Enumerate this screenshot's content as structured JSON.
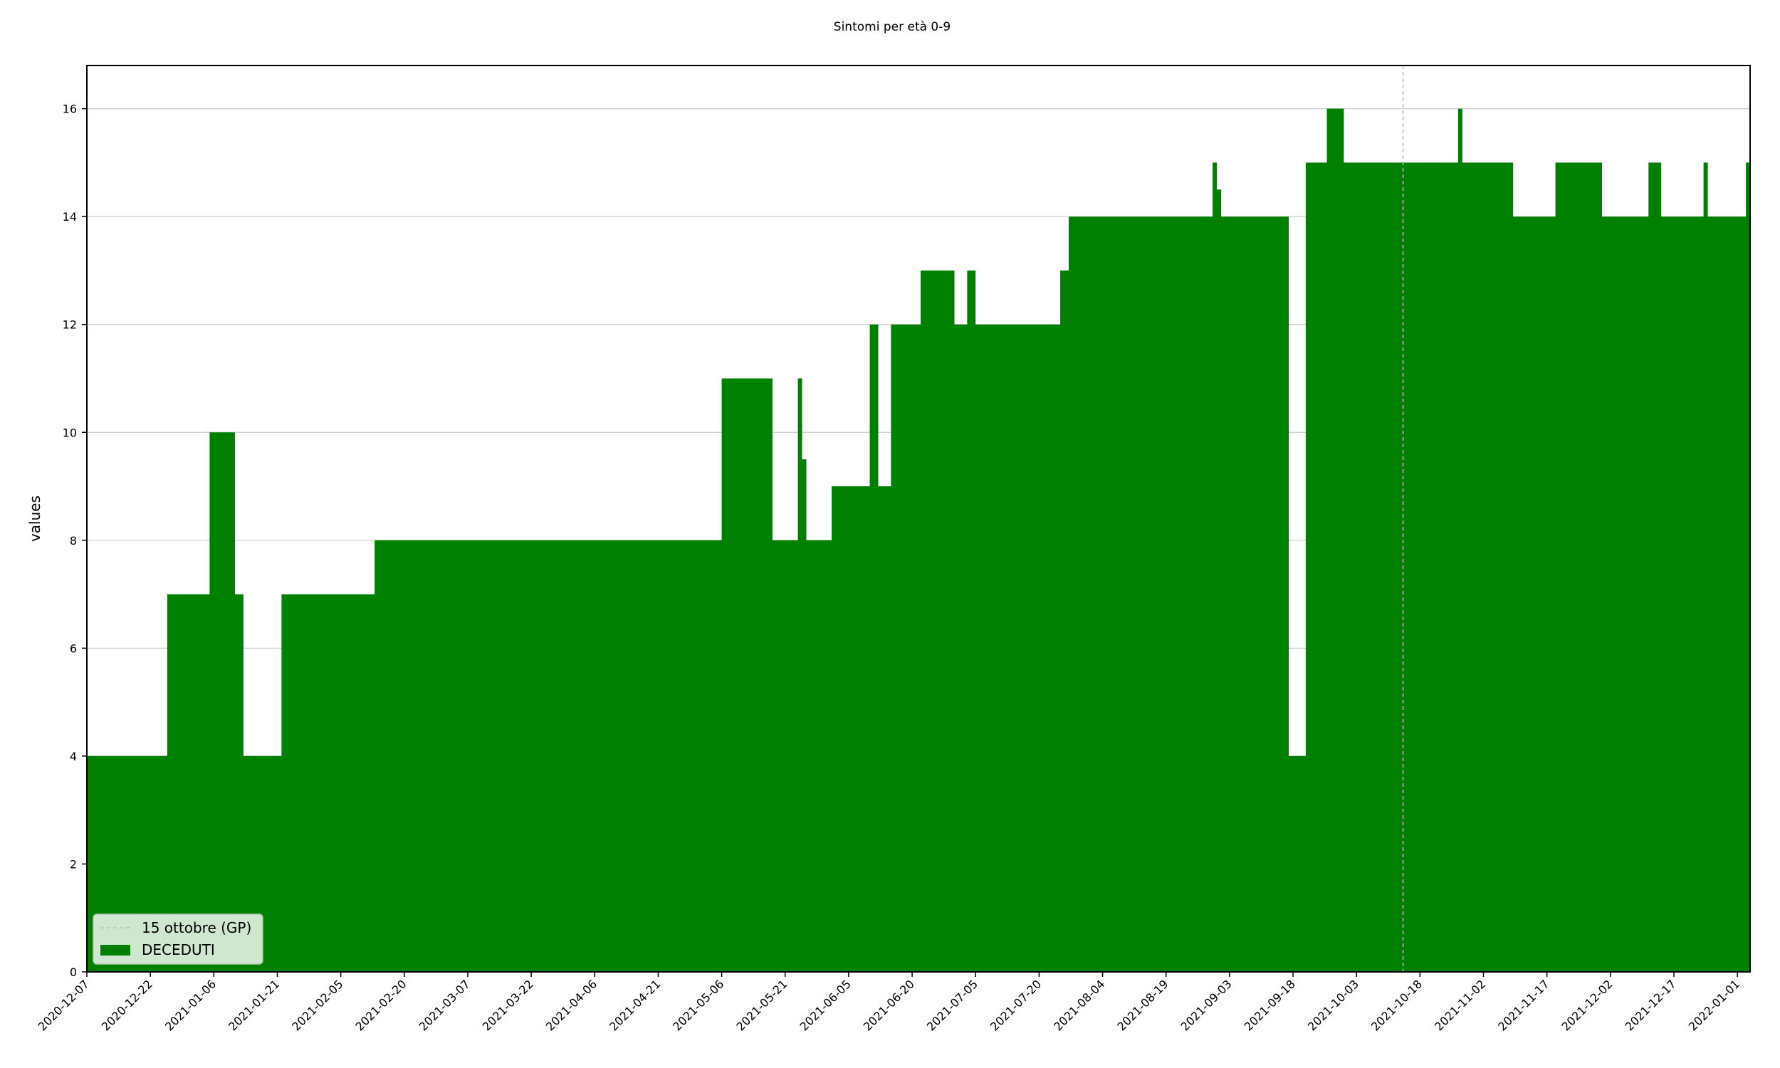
{
  "chart_data": {
    "type": "area",
    "title": "Sintomi per età 0-9",
    "xlabel": "",
    "ylabel": "values",
    "x_range": [
      "2020-12-07",
      "2022-01-04"
    ],
    "ylim": [
      0,
      16.8
    ],
    "yticks": [
      0,
      2,
      4,
      6,
      8,
      10,
      12,
      14,
      16
    ],
    "xticks": [
      "2020-12-07",
      "2020-12-22",
      "2021-01-06",
      "2021-01-21",
      "2021-02-05",
      "2021-02-20",
      "2021-03-07",
      "2021-03-22",
      "2021-04-06",
      "2021-04-21",
      "2021-05-06",
      "2021-05-21",
      "2021-06-05",
      "2021-06-20",
      "2021-07-05",
      "2021-07-20",
      "2021-08-04",
      "2021-08-19",
      "2021-09-03",
      "2021-09-18",
      "2021-10-03",
      "2021-10-18",
      "2021-11-02",
      "2021-11-17",
      "2021-12-02",
      "2021-12-17",
      "2022-01-01"
    ],
    "grid": "y",
    "legend_position": "lower-left",
    "reference_line": {
      "date": "2021-10-14",
      "label": "15 ottobre (GP)",
      "color": "#bbbbbb"
    },
    "series": [
      {
        "name": "DECEDUTI",
        "color": "#008000",
        "points": [
          [
            "2020-12-07",
            4
          ],
          [
            "2020-12-26",
            7
          ],
          [
            "2021-01-05",
            10
          ],
          [
            "2021-01-11",
            7
          ],
          [
            "2021-01-13",
            4
          ],
          [
            "2021-01-22",
            7
          ],
          [
            "2021-02-13",
            8
          ],
          [
            "2021-05-06",
            11
          ],
          [
            "2021-05-18",
            8
          ],
          [
            "2021-05-24",
            11
          ],
          [
            "2021-05-25",
            9.5
          ],
          [
            "2021-05-26",
            8
          ],
          [
            "2021-06-01",
            9
          ],
          [
            "2021-06-10",
            12
          ],
          [
            "2021-06-12",
            9
          ],
          [
            "2021-06-15",
            12
          ],
          [
            "2021-06-22",
            13
          ],
          [
            "2021-06-30",
            12
          ],
          [
            "2021-07-03",
            13
          ],
          [
            "2021-07-05",
            12
          ],
          [
            "2021-07-25",
            13
          ],
          [
            "2021-07-27",
            14
          ],
          [
            "2021-08-30",
            15
          ],
          [
            "2021-08-31",
            14.5
          ],
          [
            "2021-09-01",
            14
          ],
          [
            "2021-09-17",
            4
          ],
          [
            "2021-09-21",
            15
          ],
          [
            "2021-09-26",
            16
          ],
          [
            "2021-09-30",
            15
          ],
          [
            "2021-10-27",
            16
          ],
          [
            "2021-10-28",
            15
          ],
          [
            "2021-11-09",
            14
          ],
          [
            "2021-11-19",
            15
          ],
          [
            "2021-11-30",
            14
          ],
          [
            "2021-12-11",
            15
          ],
          [
            "2021-12-14",
            14
          ],
          [
            "2021-12-24",
            15
          ],
          [
            "2021-12-25",
            14
          ],
          [
            "2022-01-03",
            15
          ],
          [
            "2022-01-04",
            15
          ]
        ]
      }
    ]
  }
}
